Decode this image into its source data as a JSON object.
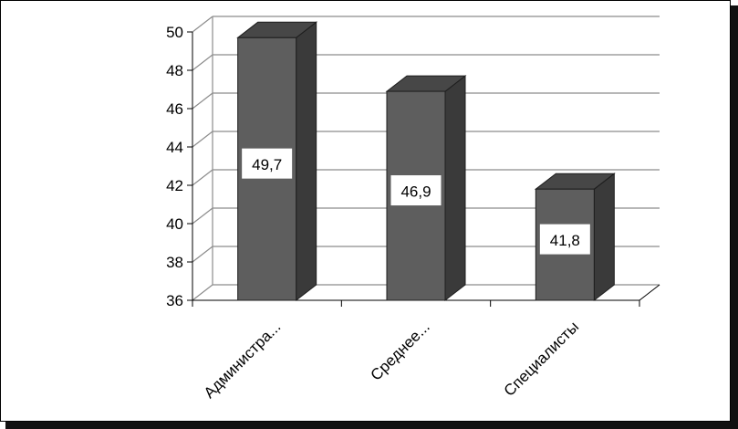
{
  "chart_data": {
    "type": "bar",
    "title": "",
    "xlabel": "",
    "ylabel": "",
    "categories": [
      "Администра...",
      "Среднее...",
      "Специалисты"
    ],
    "values": [
      49.7,
      46.9,
      41.8
    ],
    "data_labels": [
      "49,7",
      "46,9",
      "41,8"
    ],
    "ylim": [
      36,
      50
    ],
    "yticks": [
      36,
      38,
      40,
      42,
      44,
      46,
      48,
      50
    ],
    "grid": true,
    "style": "3d-column",
    "legend": "none",
    "colors": {
      "bar_front": "#5e5e5e",
      "bar_side": "#3a3a3a",
      "bar_top": "#474747",
      "grid": "#8c8c8c",
      "label_bg": "#ffffff"
    }
  }
}
